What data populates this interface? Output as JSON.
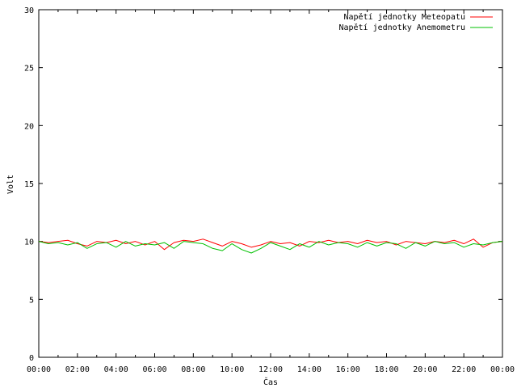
{
  "chart_data": {
    "type": "line",
    "title": "",
    "xlabel": "Čas",
    "ylabel": "Volt",
    "ylim": [
      0,
      30
    ],
    "xlim": [
      "00:00",
      "24:00"
    ],
    "grid": false,
    "legend_position": "top-right",
    "y_ticks": [
      "0",
      "5",
      "10",
      "15",
      "20",
      "25",
      "30"
    ],
    "x_ticks": [
      "00:00",
      "02:00",
      "04:00",
      "06:00",
      "08:00",
      "10:00",
      "12:00",
      "14:00",
      "16:00",
      "18:00",
      "20:00",
      "22:00",
      "00:00"
    ],
    "x": [
      "00:00",
      "00:30",
      "01:00",
      "01:30",
      "02:00",
      "02:30",
      "03:00",
      "03:30",
      "04:00",
      "04:30",
      "05:00",
      "05:30",
      "06:00",
      "06:30",
      "07:00",
      "07:30",
      "08:00",
      "08:30",
      "09:00",
      "09:30",
      "10:00",
      "10:30",
      "11:00",
      "11:30",
      "12:00",
      "12:30",
      "13:00",
      "13:30",
      "14:00",
      "14:30",
      "15:00",
      "15:30",
      "16:00",
      "16:30",
      "17:00",
      "17:30",
      "18:00",
      "18:30",
      "19:00",
      "19:30",
      "20:00",
      "20:30",
      "21:00",
      "21:30",
      "22:00",
      "22:30",
      "23:00",
      "23:30",
      "00:00"
    ],
    "series": [
      {
        "name": "Napětí jednotky Meteopatu",
        "color": "#ff0000",
        "values": [
          10.0,
          9.9,
          10.0,
          10.1,
          9.8,
          9.6,
          10.0,
          9.9,
          10.1,
          9.8,
          10.0,
          9.7,
          10.0,
          9.3,
          9.9,
          10.1,
          10.0,
          10.2,
          9.9,
          9.6,
          10.0,
          9.8,
          9.5,
          9.7,
          10.0,
          9.8,
          9.9,
          9.6,
          10.0,
          9.9,
          10.1,
          9.9,
          10.0,
          9.8,
          10.1,
          9.9,
          10.0,
          9.7,
          10.0,
          9.9,
          9.8,
          10.0,
          9.9,
          10.1,
          9.8,
          10.2,
          9.5,
          9.9,
          10.0
        ]
      },
      {
        "name": "Napětí jednotky Anemometru",
        "color": "#00c000",
        "values": [
          10.0,
          9.8,
          9.9,
          9.7,
          9.9,
          9.4,
          9.8,
          9.9,
          9.5,
          10.0,
          9.6,
          9.8,
          9.7,
          9.9,
          9.4,
          10.0,
          9.9,
          9.8,
          9.4,
          9.2,
          9.8,
          9.3,
          9.0,
          9.4,
          9.9,
          9.6,
          9.3,
          9.8,
          9.5,
          10.0,
          9.7,
          9.9,
          9.8,
          9.5,
          9.9,
          9.6,
          9.9,
          9.8,
          9.4,
          9.9,
          9.6,
          10.0,
          9.8,
          9.9,
          9.5,
          9.8,
          9.7,
          9.9,
          10.0
        ]
      }
    ]
  }
}
